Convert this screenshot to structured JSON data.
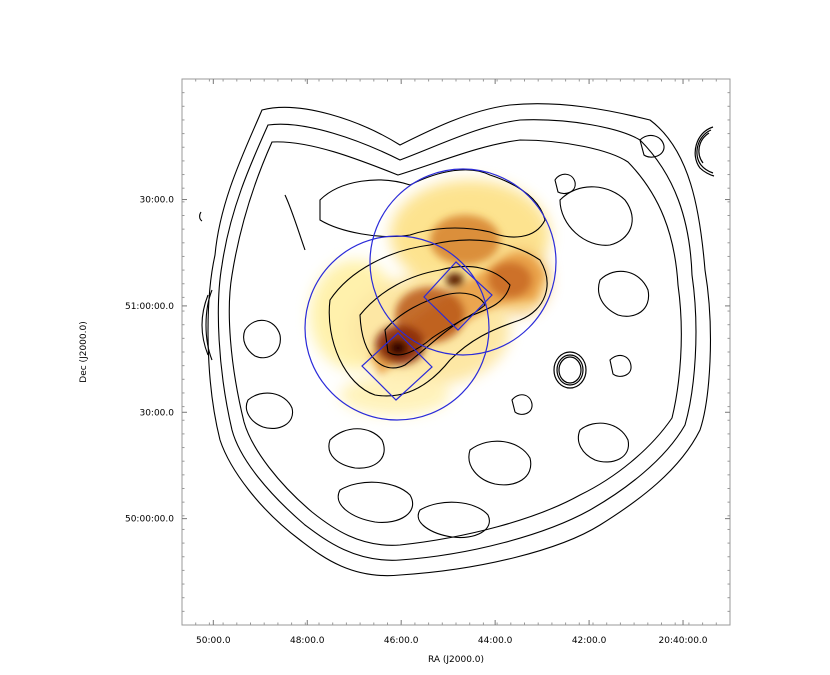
{
  "chart_data": {
    "type": "heatmap",
    "title": "",
    "xlabel": "RA (J2000.0)",
    "ylabel": "Dec (J2000.0)",
    "x_ticks": [
      {
        "label": "50:00.0",
        "value": 3150.0
      },
      {
        "label": "48:00.0",
        "value": 3030.0
      },
      {
        "label": "46:00.0",
        "value": 2910.0
      },
      {
        "label": "44:00.0",
        "value": 2790.0
      },
      {
        "label": "42:00.0",
        "value": 2670.0
      },
      {
        "label": "20:40:00.0",
        "value": 2550.0
      }
    ],
    "y_ticks": [
      {
        "label": "30:00.0",
        "value": 3090.0
      },
      {
        "label": "51:00:00.0",
        "value": 3060.0
      },
      {
        "label": "30:00.0",
        "value": 3030.0
      },
      {
        "label": "50:00:00.0",
        "value": 3000.0
      }
    ],
    "xlim": [
      3190.0,
      2490.0
    ],
    "ylim": [
      2970.0,
      3124.0
    ],
    "grid": false,
    "legend": "none",
    "colors": {
      "contours": "#000000",
      "regions": "#2b2bd9",
      "heat_low": "#fff7c0",
      "heat_mid": "#e89530",
      "heat_high": "#2a0500"
    }
  }
}
